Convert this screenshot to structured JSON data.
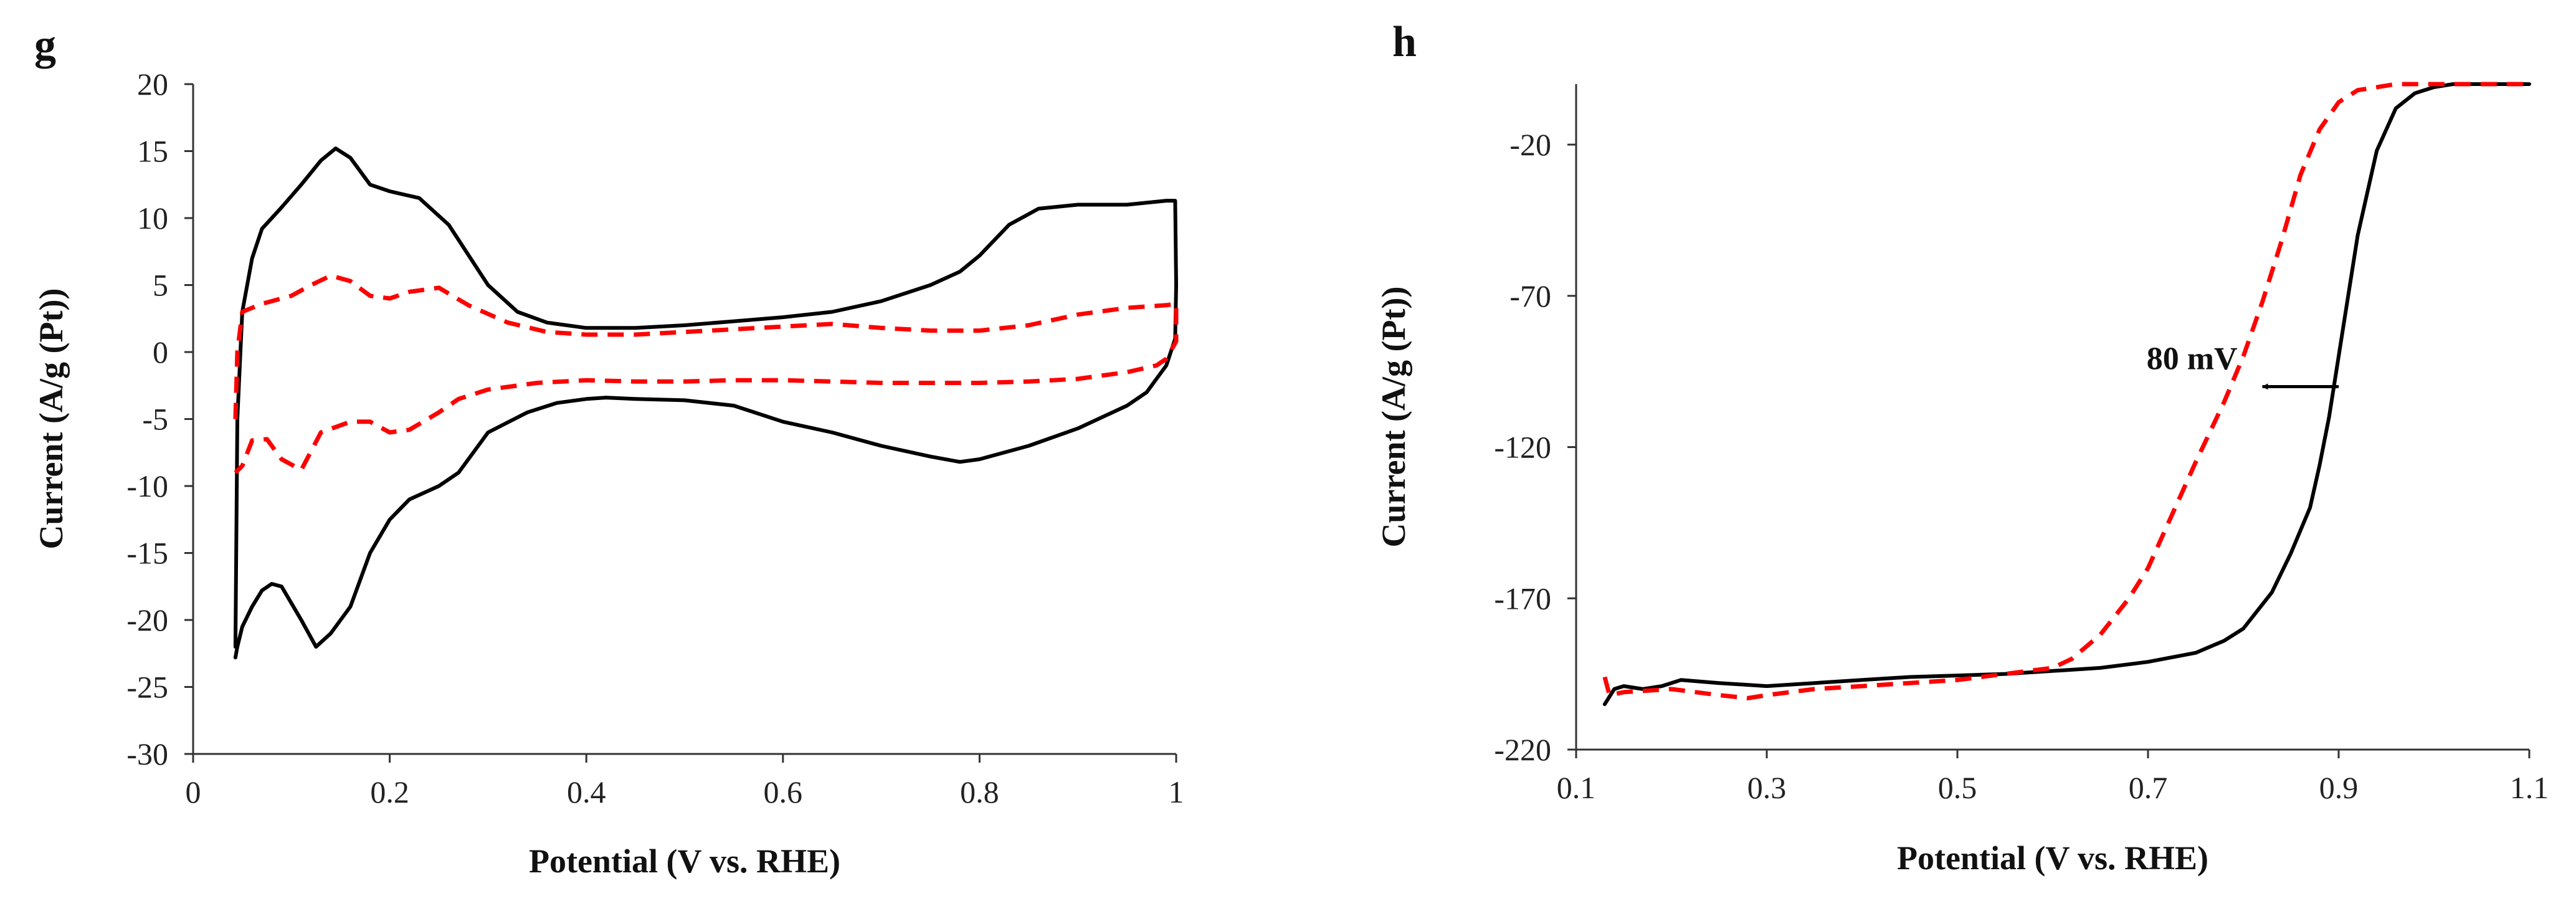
{
  "chart_data": [
    {
      "panel": "g",
      "type": "line",
      "xlabel": "Potential (V vs. RHE)",
      "ylabel": "Current (A/g (Pt))",
      "xlim": [
        0,
        1
      ],
      "ylim": [
        -30,
        20
      ],
      "xticks": [
        "0",
        "0.2",
        "0.4",
        "0.6",
        "0.8",
        "1"
      ],
      "yticks": [
        "-30",
        "-25",
        "-20",
        "-15",
        "-10",
        "-5",
        "0",
        "5",
        "10",
        "15",
        "20"
      ],
      "grid": false,
      "series": [
        {
          "name": "solid",
          "color": "#000000",
          "dash": false,
          "x": [
            0.043,
            0.045,
            0.05,
            0.06,
            0.07,
            0.09,
            0.11,
            0.13,
            0.145,
            0.16,
            0.18,
            0.2,
            0.23,
            0.26,
            0.3,
            0.33,
            0.36,
            0.4,
            0.45,
            0.5,
            0.55,
            0.6,
            0.65,
            0.7,
            0.75,
            0.78,
            0.8,
            0.83,
            0.86,
            0.9,
            0.95,
            0.99,
            0.999,
            1.0,
            0.999,
            0.99,
            0.98,
            0.97,
            0.95,
            0.9,
            0.85,
            0.8,
            0.78,
            0.75,
            0.7,
            0.65,
            0.6,
            0.55,
            0.5,
            0.45,
            0.42,
            0.4,
            0.37,
            0.34,
            0.3,
            0.27,
            0.25,
            0.22,
            0.2,
            0.18,
            0.16,
            0.14,
            0.125,
            0.11,
            0.09,
            0.08,
            0.07,
            0.06,
            0.05,
            0.045,
            0.043
          ],
          "y": [
            -22,
            -5,
            3,
            7,
            9.2,
            10.8,
            12.5,
            14.3,
            15.2,
            14.5,
            12.5,
            12,
            11.5,
            9.5,
            5,
            3,
            2.2,
            1.8,
            1.8,
            2,
            2.3,
            2.6,
            3,
            3.8,
            5,
            6,
            7.2,
            9.5,
            10.7,
            11,
            11,
            11.3,
            11.3,
            5,
            1,
            -1,
            -2,
            -3,
            -4,
            -5.7,
            -7,
            -8,
            -8.2,
            -7.8,
            -7,
            -6,
            -5.2,
            -4,
            -3.6,
            -3.5,
            -3.4,
            -3.5,
            -3.8,
            -4.5,
            -6,
            -9,
            -10,
            -11,
            -12.5,
            -15,
            -19,
            -21,
            -22,
            -20,
            -17.5,
            -17.3,
            -17.8,
            -19,
            -20.5,
            -22,
            -22.8
          ]
        },
        {
          "name": "dashed",
          "color": "#ff0000",
          "dash": true,
          "x": [
            0.043,
            0.045,
            0.05,
            0.07,
            0.1,
            0.12,
            0.14,
            0.16,
            0.18,
            0.2,
            0.22,
            0.25,
            0.28,
            0.32,
            0.36,
            0.4,
            0.45,
            0.5,
            0.55,
            0.6,
            0.65,
            0.7,
            0.75,
            0.8,
            0.85,
            0.9,
            0.95,
            0.99,
            1.0,
            1.0,
            0.99,
            0.98,
            0.95,
            0.9,
            0.85,
            0.8,
            0.75,
            0.7,
            0.65,
            0.6,
            0.55,
            0.5,
            0.45,
            0.4,
            0.35,
            0.3,
            0.27,
            0.25,
            0.22,
            0.2,
            0.18,
            0.16,
            0.13,
            0.11,
            0.09,
            0.075,
            0.06,
            0.05,
            0.043
          ],
          "y": [
            -5,
            0,
            3,
            3.6,
            4.2,
            5,
            5.7,
            5.3,
            4.2,
            4,
            4.5,
            4.8,
            3.5,
            2.2,
            1.5,
            1.3,
            1.3,
            1.5,
            1.7,
            1.9,
            2.1,
            1.8,
            1.6,
            1.6,
            2,
            2.8,
            3.3,
            3.5,
            3.6,
            0.8,
            -0.5,
            -1,
            -1.5,
            -2,
            -2.2,
            -2.3,
            -2.3,
            -2.3,
            -2.2,
            -2.1,
            -2.1,
            -2.2,
            -2.2,
            -2.1,
            -2.3,
            -2.8,
            -3.5,
            -4.5,
            -5.8,
            -6,
            -5.2,
            -5.2,
            -6,
            -8.8,
            -8,
            -6.5,
            -6.6,
            -8.5,
            -9
          ]
        }
      ]
    },
    {
      "panel": "h",
      "type": "line",
      "xlabel": "Potential (V vs. RHE)",
      "ylabel": "Current (A/g (Pt))",
      "xlim": [
        0.1,
        1.1
      ],
      "ylim": [
        -220,
        0
      ],
      "xticks": [
        "0.1",
        "0.3",
        "0.5",
        "0.7",
        "0.9",
        "1.1"
      ],
      "yticks": [
        "-20",
        "-70",
        "-120",
        "-170",
        "-220"
      ],
      "grid": false,
      "series": [
        {
          "name": "solid",
          "color": "#000000",
          "dash": false,
          "x": [
            0.13,
            0.14,
            0.15,
            0.17,
            0.19,
            0.21,
            0.25,
            0.3,
            0.35,
            0.4,
            0.45,
            0.5,
            0.55,
            0.6,
            0.65,
            0.7,
            0.75,
            0.78,
            0.8,
            0.83,
            0.85,
            0.87,
            0.88,
            0.89,
            0.9,
            0.91,
            0.92,
            0.94,
            0.96,
            0.98,
            1.0,
            1.02,
            1.05,
            1.1
          ],
          "y": [
            -205,
            -200,
            -199,
            -200,
            -199,
            -197,
            -198,
            -199,
            -198,
            -197,
            -196,
            -195.5,
            -195,
            -194,
            -193,
            -191,
            -188,
            -184,
            -180,
            -168,
            -155,
            -140,
            -126,
            -110,
            -90,
            -70,
            -50,
            -22,
            -8,
            -3,
            -1,
            0,
            0,
            0
          ]
        },
        {
          "name": "dashed",
          "color": "#ff0000",
          "dash": true,
          "x": [
            0.13,
            0.135,
            0.15,
            0.2,
            0.25,
            0.28,
            0.3,
            0.35,
            0.4,
            0.45,
            0.5,
            0.55,
            0.6,
            0.62,
            0.65,
            0.68,
            0.7,
            0.72,
            0.75,
            0.78,
            0.8,
            0.82,
            0.84,
            0.86,
            0.88,
            0.9,
            0.92,
            0.94,
            0.96,
            0.98,
            1.0,
            1.05,
            1.1
          ],
          "y": [
            -196,
            -202,
            -201,
            -200,
            -202,
            -203,
            -202,
            -200,
            -199,
            -198,
            -197,
            -195,
            -193,
            -190,
            -182,
            -170,
            -160,
            -146,
            -125,
            -105,
            -90,
            -72,
            -52,
            -30,
            -15,
            -6,
            -2,
            -1,
            0,
            0,
            0,
            0,
            0
          ]
        }
      ],
      "annotations": [
        {
          "text": "80 mV",
          "x_from": 0.82,
          "x_to": 0.9,
          "y": -100
        }
      ]
    }
  ]
}
